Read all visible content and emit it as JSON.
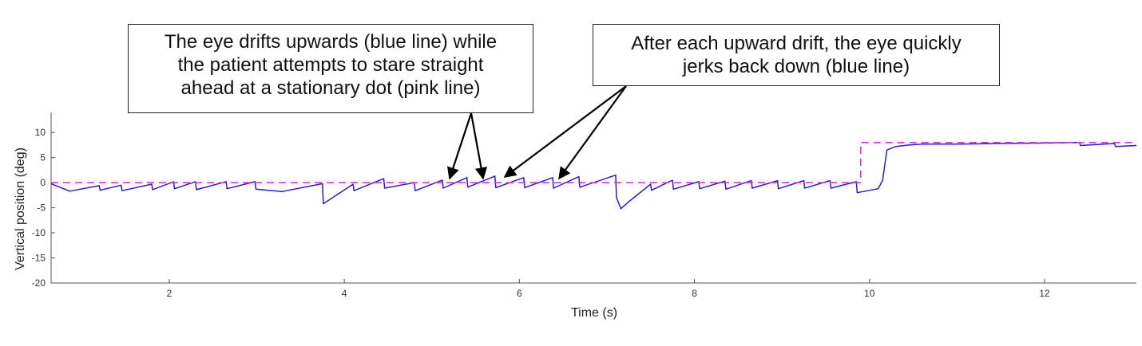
{
  "chart_data": {
    "type": "line",
    "xlabel": "Time (s)",
    "ylabel": "Vertical position (deg)",
    "xlim": [
      0.65,
      13.05
    ],
    "ylim": [
      -20,
      14
    ],
    "xticks": [
      2,
      4,
      6,
      8,
      10,
      12
    ],
    "yticks": [
      10,
      5,
      0,
      -5,
      -10,
      -15,
      -20
    ],
    "grid": false,
    "series": [
      {
        "style": "solid",
        "color": "#1f1fe0",
        "x": [
          0.65,
          0.85,
          0.86,
          1.2,
          1.21,
          1.45,
          1.46,
          1.8,
          1.81,
          2.05,
          2.06,
          2.3,
          2.31,
          2.65,
          2.66,
          2.98,
          2.99,
          3.3,
          3.31,
          3.75,
          3.76,
          4.1,
          4.11,
          4.45,
          4.46,
          4.8,
          4.81,
          5.12,
          5.13,
          5.4,
          5.41,
          5.72,
          5.73,
          6.05,
          6.06,
          6.38,
          6.39,
          6.68,
          6.69,
          7.1,
          7.11,
          7.16,
          7.25,
          7.5,
          7.51,
          7.75,
          7.76,
          8.05,
          8.06,
          8.35,
          8.36,
          8.65,
          8.66,
          8.95,
          8.96,
          9.25,
          9.26,
          9.55,
          9.56,
          9.85,
          9.86,
          10.1,
          10.15,
          10.2,
          10.3,
          10.45,
          10.6,
          11.0,
          11.5,
          12.0,
          12.4,
          12.41,
          12.8,
          12.81,
          13.05
        ],
        "y": [
          -0.2,
          -1.6,
          -1.7,
          -0.6,
          -1.5,
          -0.5,
          -1.6,
          -0.3,
          -1.4,
          0.2,
          -1.2,
          0.2,
          -1.4,
          0.2,
          -1.2,
          0.2,
          -1.3,
          -1.8,
          -1.7,
          -0.2,
          -4.2,
          -0.3,
          -1.6,
          0.8,
          -1.1,
          0.0,
          -1.6,
          0.5,
          -1.1,
          1.0,
          -0.9,
          1.3,
          -1.0,
          1.0,
          -1.0,
          1.0,
          -1.1,
          1.2,
          -0.9,
          1.5,
          -3.0,
          -5.2,
          -3.8,
          -0.3,
          -1.5,
          0.5,
          -1.3,
          0.2,
          -1.2,
          0.3,
          -1.3,
          0.4,
          -1.1,
          0.4,
          -1.2,
          0.4,
          -1.1,
          0.4,
          -1.1,
          0.2,
          -2.0,
          -1.2,
          0.5,
          6.5,
          7.2,
          7.5,
          7.7,
          7.7,
          7.8,
          7.9,
          8.0,
          7.4,
          7.8,
          7.2,
          7.4
        ]
      },
      {
        "style": "dashed",
        "color": "#e030e0",
        "x": [
          0.65,
          9.9,
          9.9,
          13.05
        ],
        "y": [
          0,
          0,
          8,
          8
        ]
      }
    ],
    "annotations": [
      {
        "text": "The eye drifts upwards (blue line) while\nthe patient attempts to stare straight\nahead at a stationary dot (pink line)"
      },
      {
        "text": "After each upward drift, the eye quickly\njerks back down (blue line)"
      }
    ]
  }
}
